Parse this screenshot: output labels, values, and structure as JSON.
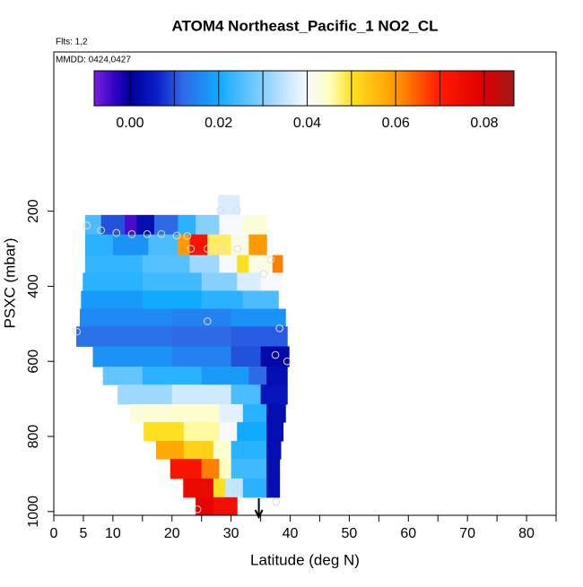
{
  "chart_data": {
    "type": "curtain",
    "title": "ATOM4 Northeast_Pacific_1 NO2_CL",
    "flights": "Flts: 1,2",
    "dates": "MMDD: 0424,0427",
    "xlabel": "Latitude (deg N)",
    "ylabel": "PSXC (mbar)",
    "xlim": [
      0,
      85
    ],
    "ylim": [
      1010,
      -224
    ],
    "xticks": [
      0,
      5,
      10,
      20,
      30,
      40,
      50,
      60,
      70,
      80
    ],
    "xminor_ticks": [
      15,
      25,
      35,
      45,
      55,
      65,
      75,
      85
    ],
    "yticks": [
      200,
      400,
      600,
      800,
      1000
    ],
    "clim": [
      -0.0081,
      0.0867
    ],
    "cticks": [
      {
        "value": 0,
        "label": "0.00"
      },
      {
        "value": 0.02,
        "label": "0.02"
      },
      {
        "value": 0.04,
        "label": "0.04"
      },
      {
        "value": 0.06,
        "label": "0.06"
      },
      {
        "value": 0.08,
        "label": "0.08"
      }
    ],
    "cbreaks": [
      0,
      0.01,
      0.02,
      0.03,
      0.04,
      0.05,
      0.06,
      0.07,
      0.08
    ],
    "colormap": [
      {
        "value": -0.0081,
        "color": "#7a1fe0"
      },
      {
        "value": -0.003,
        "color": "#2a00c0"
      },
      {
        "value": 0.0,
        "color": "#00009a"
      },
      {
        "value": 0.006,
        "color": "#0a1ec8"
      },
      {
        "value": 0.012,
        "color": "#2e6ae6"
      },
      {
        "value": 0.02,
        "color": "#10aaff"
      },
      {
        "value": 0.03,
        "color": "#86d0ff"
      },
      {
        "value": 0.036,
        "color": "#cfe9ff"
      },
      {
        "value": 0.04,
        "color": "#f6f9ff"
      },
      {
        "value": 0.045,
        "color": "#ffffc0"
      },
      {
        "value": 0.05,
        "color": "#ffe020"
      },
      {
        "value": 0.06,
        "color": "#ff9a00"
      },
      {
        "value": 0.07,
        "color": "#ff1a00"
      },
      {
        "value": 0.08,
        "color": "#dd0000"
      },
      {
        "value": 0.0867,
        "color": "#a01818"
      }
    ],
    "rows": [
      {
        "p": [
          157,
          210
        ],
        "lat_edges": [
          27.8,
          31.4
        ],
        "values": [
          0.037
        ]
      },
      {
        "p": [
          210,
          262
        ],
        "lat_edges": [
          5.3,
          8,
          12,
          14,
          17,
          21,
          24,
          28,
          32,
          36
        ],
        "values": [
          0.025,
          0.01,
          -0.005,
          0.003,
          0.012,
          0.022,
          0.03,
          0.04,
          0.043
        ]
      },
      {
        "p": [
          262,
          317
        ],
        "lat_edges": [
          5.3,
          10,
          16,
          21,
          23,
          26,
          30,
          33,
          36
        ],
        "values": [
          0.022,
          0.017,
          0.025,
          0.06,
          0.072,
          0.048,
          0.042,
          0.06
        ]
      },
      {
        "p": [
          317,
          364
        ],
        "lat_edges": [
          5.3,
          15,
          23,
          28,
          31,
          33,
          37,
          38.7
        ],
        "values": [
          0.023,
          0.026,
          0.032,
          0.04,
          0.05,
          0.042,
          0.062
        ]
      },
      {
        "p": [
          364,
          412
        ],
        "lat_edges": [
          4.9,
          15,
          25,
          31,
          35,
          38.7
        ],
        "values": [
          0.022,
          0.024,
          0.03,
          0.037,
          0.04
        ]
      },
      {
        "p": [
          412,
          460
        ],
        "lat_edges": [
          4.6,
          15,
          25,
          32,
          38
        ],
        "values": [
          0.018,
          0.02,
          0.022,
          0.025
        ]
      },
      {
        "p": [
          460,
          507
        ],
        "lat_edges": [
          4.4,
          20,
          30,
          39.2
        ],
        "values": [
          0.016,
          0.015,
          0.017
        ]
      },
      {
        "p": [
          507,
          560
        ],
        "lat_edges": [
          3.8,
          20,
          30,
          39.5
        ],
        "values": [
          0.013,
          0.012,
          0.011
        ]
      },
      {
        "p": [
          560,
          614
        ],
        "lat_edges": [
          6.6,
          20,
          30,
          35,
          39.8
        ],
        "values": [
          0.017,
          0.015,
          0.01,
          0.002
        ]
      },
      {
        "p": [
          614,
          662
        ],
        "lat_edges": [
          8.3,
          15,
          25,
          33,
          36,
          39.5
        ],
        "values": [
          0.027,
          0.022,
          0.018,
          0.012,
          0.003
        ]
      },
      {
        "p": [
          662,
          714
        ],
        "lat_edges": [
          10.8,
          20,
          30,
          35,
          39.5
        ],
        "values": [
          0.032,
          0.036,
          0.025,
          0.004
        ]
      },
      {
        "p": [
          714,
          762
        ],
        "lat_edges": [
          12.9,
          20,
          28,
          32,
          36,
          39.2
        ],
        "values": [
          0.043,
          0.044,
          0.038,
          0.022,
          0.003
        ]
      },
      {
        "p": [
          762,
          812
        ],
        "lat_edges": [
          15.2,
          22,
          28,
          31,
          36,
          38.8
        ],
        "values": [
          0.05,
          0.046,
          0.04,
          0.02,
          0.003
        ]
      },
      {
        "p": [
          812,
          860
        ],
        "lat_edges": [
          17.3,
          22,
          27,
          30,
          36,
          38.4
        ],
        "values": [
          0.058,
          0.052,
          0.044,
          0.022,
          0.003
        ]
      },
      {
        "p": [
          860,
          912
        ],
        "lat_edges": [
          19.7,
          25,
          28,
          30,
          36,
          38.2
        ],
        "values": [
          0.072,
          0.062,
          0.045,
          0.024,
          0.003
        ]
      },
      {
        "p": [
          912,
          962
        ],
        "lat_edges": [
          21.9,
          27,
          29,
          32,
          36,
          38.2
        ],
        "values": [
          0.076,
          0.05,
          0.035,
          0.022,
          0.003
        ]
      },
      {
        "p": [
          962,
          1010
        ],
        "lat_edges": [
          24,
          27,
          31
        ],
        "values": [
          0.078,
          0.074
        ]
      }
    ],
    "points": {
      "lat": [
        5.6,
        8,
        10.6,
        13.2,
        15.8,
        18.2,
        20.8,
        22.6,
        23.2,
        26,
        28.5,
        31.1,
        28.2,
        31,
        35.5,
        36.7,
        3.9,
        26,
        38.2,
        37.5,
        39.5,
        24.3,
        37.6
      ],
      "pressure": [
        238,
        251,
        258,
        261,
        261,
        261,
        265,
        266,
        300,
        300,
        300,
        300,
        198,
        198,
        367,
        329,
        521,
        493,
        512,
        583,
        600,
        994,
        974
      ]
    },
    "marker_lat": 34.7
  }
}
